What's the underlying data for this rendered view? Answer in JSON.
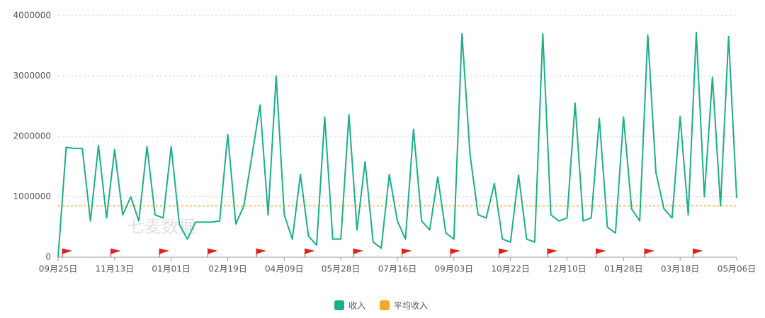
{
  "chart_data": {
    "type": "line",
    "watermark": "七麦数据",
    "categories": [
      "09月25日",
      null,
      null,
      null,
      null,
      null,
      null,
      "11月13日",
      null,
      null,
      null,
      null,
      null,
      null,
      "01月01日",
      null,
      null,
      null,
      null,
      null,
      null,
      "02月19日",
      null,
      null,
      null,
      null,
      null,
      null,
      "04月09日",
      null,
      null,
      null,
      null,
      null,
      null,
      "05月28日",
      null,
      null,
      null,
      null,
      null,
      null,
      "07月16日",
      null,
      null,
      null,
      null,
      null,
      null,
      "09月03日",
      null,
      null,
      null,
      null,
      null,
      null,
      "10月22日",
      null,
      null,
      null,
      null,
      null,
      null,
      "12月10日",
      null,
      null,
      null,
      null,
      null,
      null,
      "01月28日",
      null,
      null,
      null,
      null,
      null,
      null,
      "03月18日",
      null,
      null,
      null,
      null,
      null,
      null,
      "05月06日"
    ],
    "series": [
      {
        "name": "收入",
        "color": "#1aaf8b",
        "values": [
          0,
          1820000,
          1800000,
          1800000,
          600000,
          1850000,
          650000,
          1780000,
          700000,
          1000000,
          600000,
          1830000,
          700000,
          650000,
          1830000,
          550000,
          300000,
          580000,
          580000,
          580000,
          600000,
          2030000,
          550000,
          850000,
          1680000,
          2520000,
          700000,
          3000000,
          700000,
          300000,
          1370000,
          350000,
          200000,
          2320000,
          300000,
          300000,
          2360000,
          450000,
          1580000,
          250000,
          150000,
          1370000,
          600000,
          300000,
          2120000,
          600000,
          450000,
          1330000,
          400000,
          300000,
          3700000,
          1700000,
          700000,
          650000,
          1220000,
          300000,
          250000,
          1360000,
          300000,
          250000,
          3700000,
          700000,
          600000,
          650000,
          2550000,
          600000,
          650000,
          2300000,
          500000,
          400000,
          2320000,
          800000,
          600000,
          3680000,
          1400000,
          800000,
          650000,
          2330000,
          700000,
          3720000,
          1000000,
          2980000,
          850000,
          3650000,
          980000
        ]
      }
    ],
    "reference_lines": [
      {
        "name": "平均收入",
        "color": "#f5a623",
        "value": 850000
      }
    ],
    "ylim": [
      0,
      4000000
    ],
    "yticks": [
      0,
      1000000,
      2000000,
      3000000,
      4000000
    ],
    "grid": true,
    "legend": "bottom"
  }
}
